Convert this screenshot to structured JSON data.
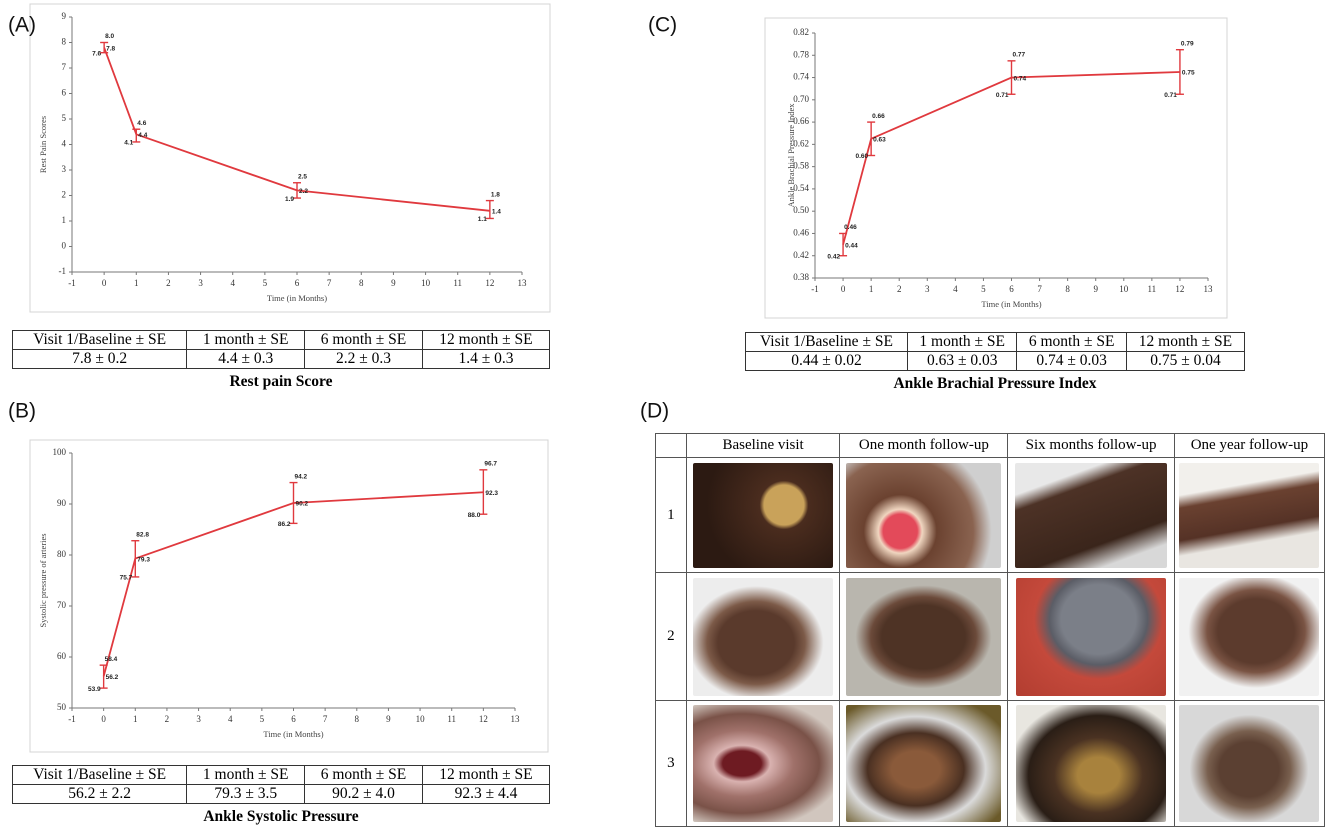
{
  "chart_data": [
    {
      "type": "errorline",
      "panel_label": "(A)",
      "y_label": "Rest Pain Scores",
      "x_label": "Time (in Months)",
      "x": [
        0,
        1,
        6,
        12
      ],
      "values": [
        7.8,
        4.4,
        2.2,
        1.4
      ],
      "upper": [
        8,
        4.6,
        2.5,
        1.8
      ],
      "upper_labels": [
        "8.0",
        "4.6",
        "2.5",
        "1.8"
      ],
      "lower": [
        7.6,
        4.1,
        1.9,
        1.1
      ],
      "color": "#e0393e",
      "xlim": [
        -1,
        13
      ],
      "xticks": [
        -1,
        0,
        1,
        2,
        3,
        4,
        5,
        6,
        7,
        8,
        9,
        10,
        11,
        12,
        13
      ],
      "ylim": [
        -1,
        9
      ],
      "yticks": [
        -1,
        0,
        1,
        2,
        3,
        4,
        5,
        6,
        7,
        8,
        9
      ]
    },
    {
      "type": "errorline",
      "panel_label": "(B)",
      "y_label": "Systolic pressure of arteries",
      "x_label": "Time (in Months)",
      "x": [
        0,
        1,
        6,
        12
      ],
      "values": [
        56.2,
        79.3,
        90.2,
        92.3
      ],
      "upper": [
        58.4,
        82.8,
        94.2,
        96.7
      ],
      "lower": [
        53.9,
        75.7,
        86.2,
        88
      ],
      "lower_labels": [
        "53.9",
        "75.7",
        "86.2",
        "88.0"
      ],
      "color": "#e0393e",
      "xlim": [
        -1,
        13
      ],
      "xticks": [
        -1,
        0,
        1,
        2,
        3,
        4,
        5,
        6,
        7,
        8,
        9,
        10,
        11,
        12,
        13
      ],
      "ylim": [
        50,
        100
      ],
      "yticks": [
        50,
        60,
        70,
        80,
        90,
        100
      ]
    },
    {
      "type": "errorline",
      "panel_label": "(C)",
      "y_label": "Ankle Brachial Pressure Index",
      "x_label": "Time (in Months)",
      "x": [
        0,
        1,
        6,
        12
      ],
      "values": [
        0.44,
        0.63,
        0.74,
        0.75
      ],
      "upper": [
        0.46,
        0.66,
        0.77,
        0.79
      ],
      "lower": [
        0.42,
        0.6,
        0.71,
        0.71
      ],
      "lower_labels": [
        "0.42",
        "0.60",
        "0.71",
        "0.71"
      ],
      "color": "#e0393e",
      "xlim": [
        -1,
        13
      ],
      "xticks": [
        -1,
        0,
        1,
        2,
        3,
        4,
        5,
        6,
        7,
        8,
        9,
        10,
        11,
        12,
        13
      ],
      "ylim": [
        0.38,
        0.82
      ],
      "yticks": [
        0.38,
        0.42,
        0.46,
        {
          "value": 0.5,
          "label": "0.50"
        },
        0.54,
        0.58,
        0.62,
        0.66,
        {
          "value": 0.7,
          "label": "0.70"
        },
        0.74,
        0.78,
        0.82
      ]
    }
  ],
  "tables": [
    {
      "header": [
        "Visit 1/Baseline ± SE",
        "1 month ± SE",
        "6 month ± SE",
        "12 month ± SE"
      ],
      "rows": [
        [
          "7.8 ± 0.2",
          "4.4 ± 0.3",
          "2.2 ± 0.3",
          "1.4 ± 0.3"
        ]
      ],
      "caption": "Rest pain Score"
    },
    {
      "header": [
        "Visit 1/Baseline ± SE",
        "1 month ± SE",
        "6 month ± SE",
        "12 month ± SE"
      ],
      "rows": [
        [
          "56.2 ± 2.2",
          "79.3 ± 3.5",
          "90.2 ± 4.0",
          "92.3 ± 4.4"
        ]
      ],
      "caption": "Ankle Systolic Pressure"
    },
    {
      "header": [
        "Visit 1/Baseline ± SE",
        "1 month ± SE",
        "6 month ± SE",
        "12 month ± SE"
      ],
      "rows": [
        [
          "0.44 ± 0.02",
          "0.63 ± 0.03",
          "0.74 ± 0.03",
          "0.75 ± 0.04"
        ]
      ],
      "caption": "Ankle Brachial Pressure Index"
    }
  ],
  "photo_grid": {
    "panel_label": "(D)",
    "columns": [
      "Baseline visit",
      "One month follow-up",
      "Six months follow-up",
      "One year follow-up"
    ],
    "rows": [
      "1",
      "2",
      "3"
    ]
  }
}
